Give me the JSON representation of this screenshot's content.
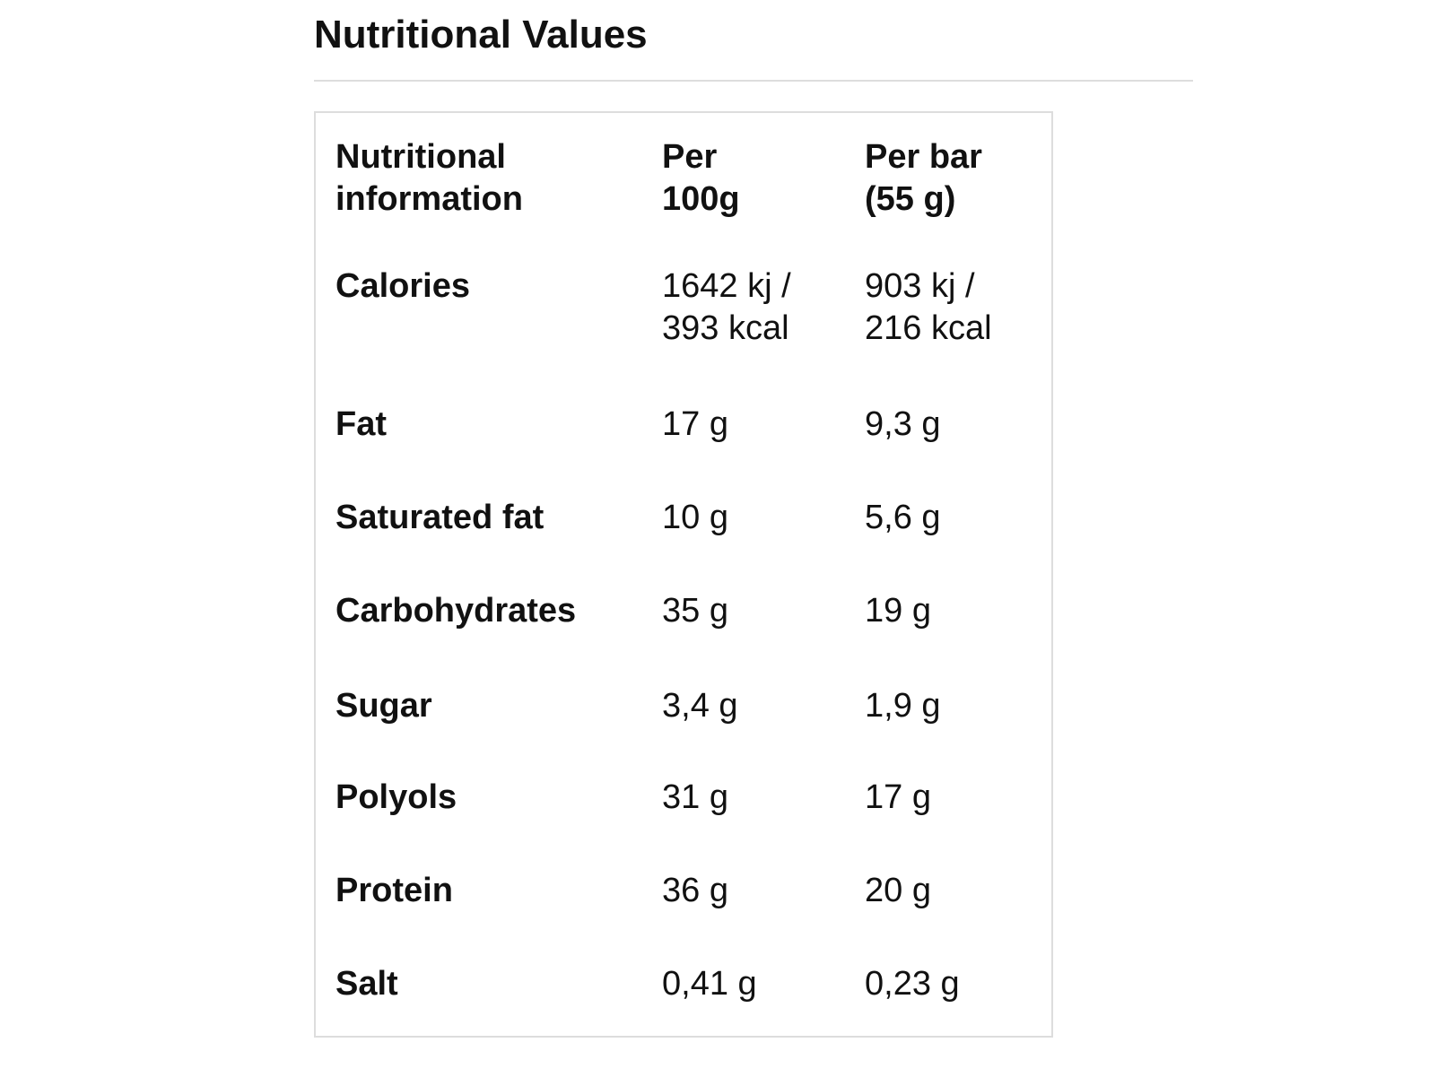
{
  "header": {
    "title": "Nutritional Values"
  },
  "table": {
    "columns": [
      [
        "Nutritional",
        "information"
      ],
      [
        "Per",
        "100g"
      ],
      [
        "Per bar",
        "(55 g)"
      ]
    ],
    "rows": [
      [
        [
          "Calories"
        ],
        [
          "1642 kj /",
          "393 kcal"
        ],
        [
          "903 kj /",
          "216 kcal"
        ]
      ],
      [
        [
          "Fat"
        ],
        [
          "17 g"
        ],
        [
          "9,3 g"
        ]
      ],
      [
        [
          "Saturated fat"
        ],
        [
          "10 g"
        ],
        [
          "5,6 g"
        ]
      ],
      [
        [
          "Carbohydrates"
        ],
        [
          "35 g"
        ],
        [
          "19 g"
        ]
      ],
      [
        [
          "Sugar"
        ],
        [
          "3,4 g"
        ],
        [
          "1,9 g"
        ]
      ],
      [
        [
          "Polyols"
        ],
        [
          "31 g"
        ],
        [
          "17 g"
        ]
      ],
      [
        [
          "Protein"
        ],
        [
          "36 g"
        ],
        [
          "20 g"
        ]
      ],
      [
        [
          "Salt"
        ],
        [
          "0,41 g"
        ],
        [
          "0,23 g"
        ]
      ]
    ]
  }
}
